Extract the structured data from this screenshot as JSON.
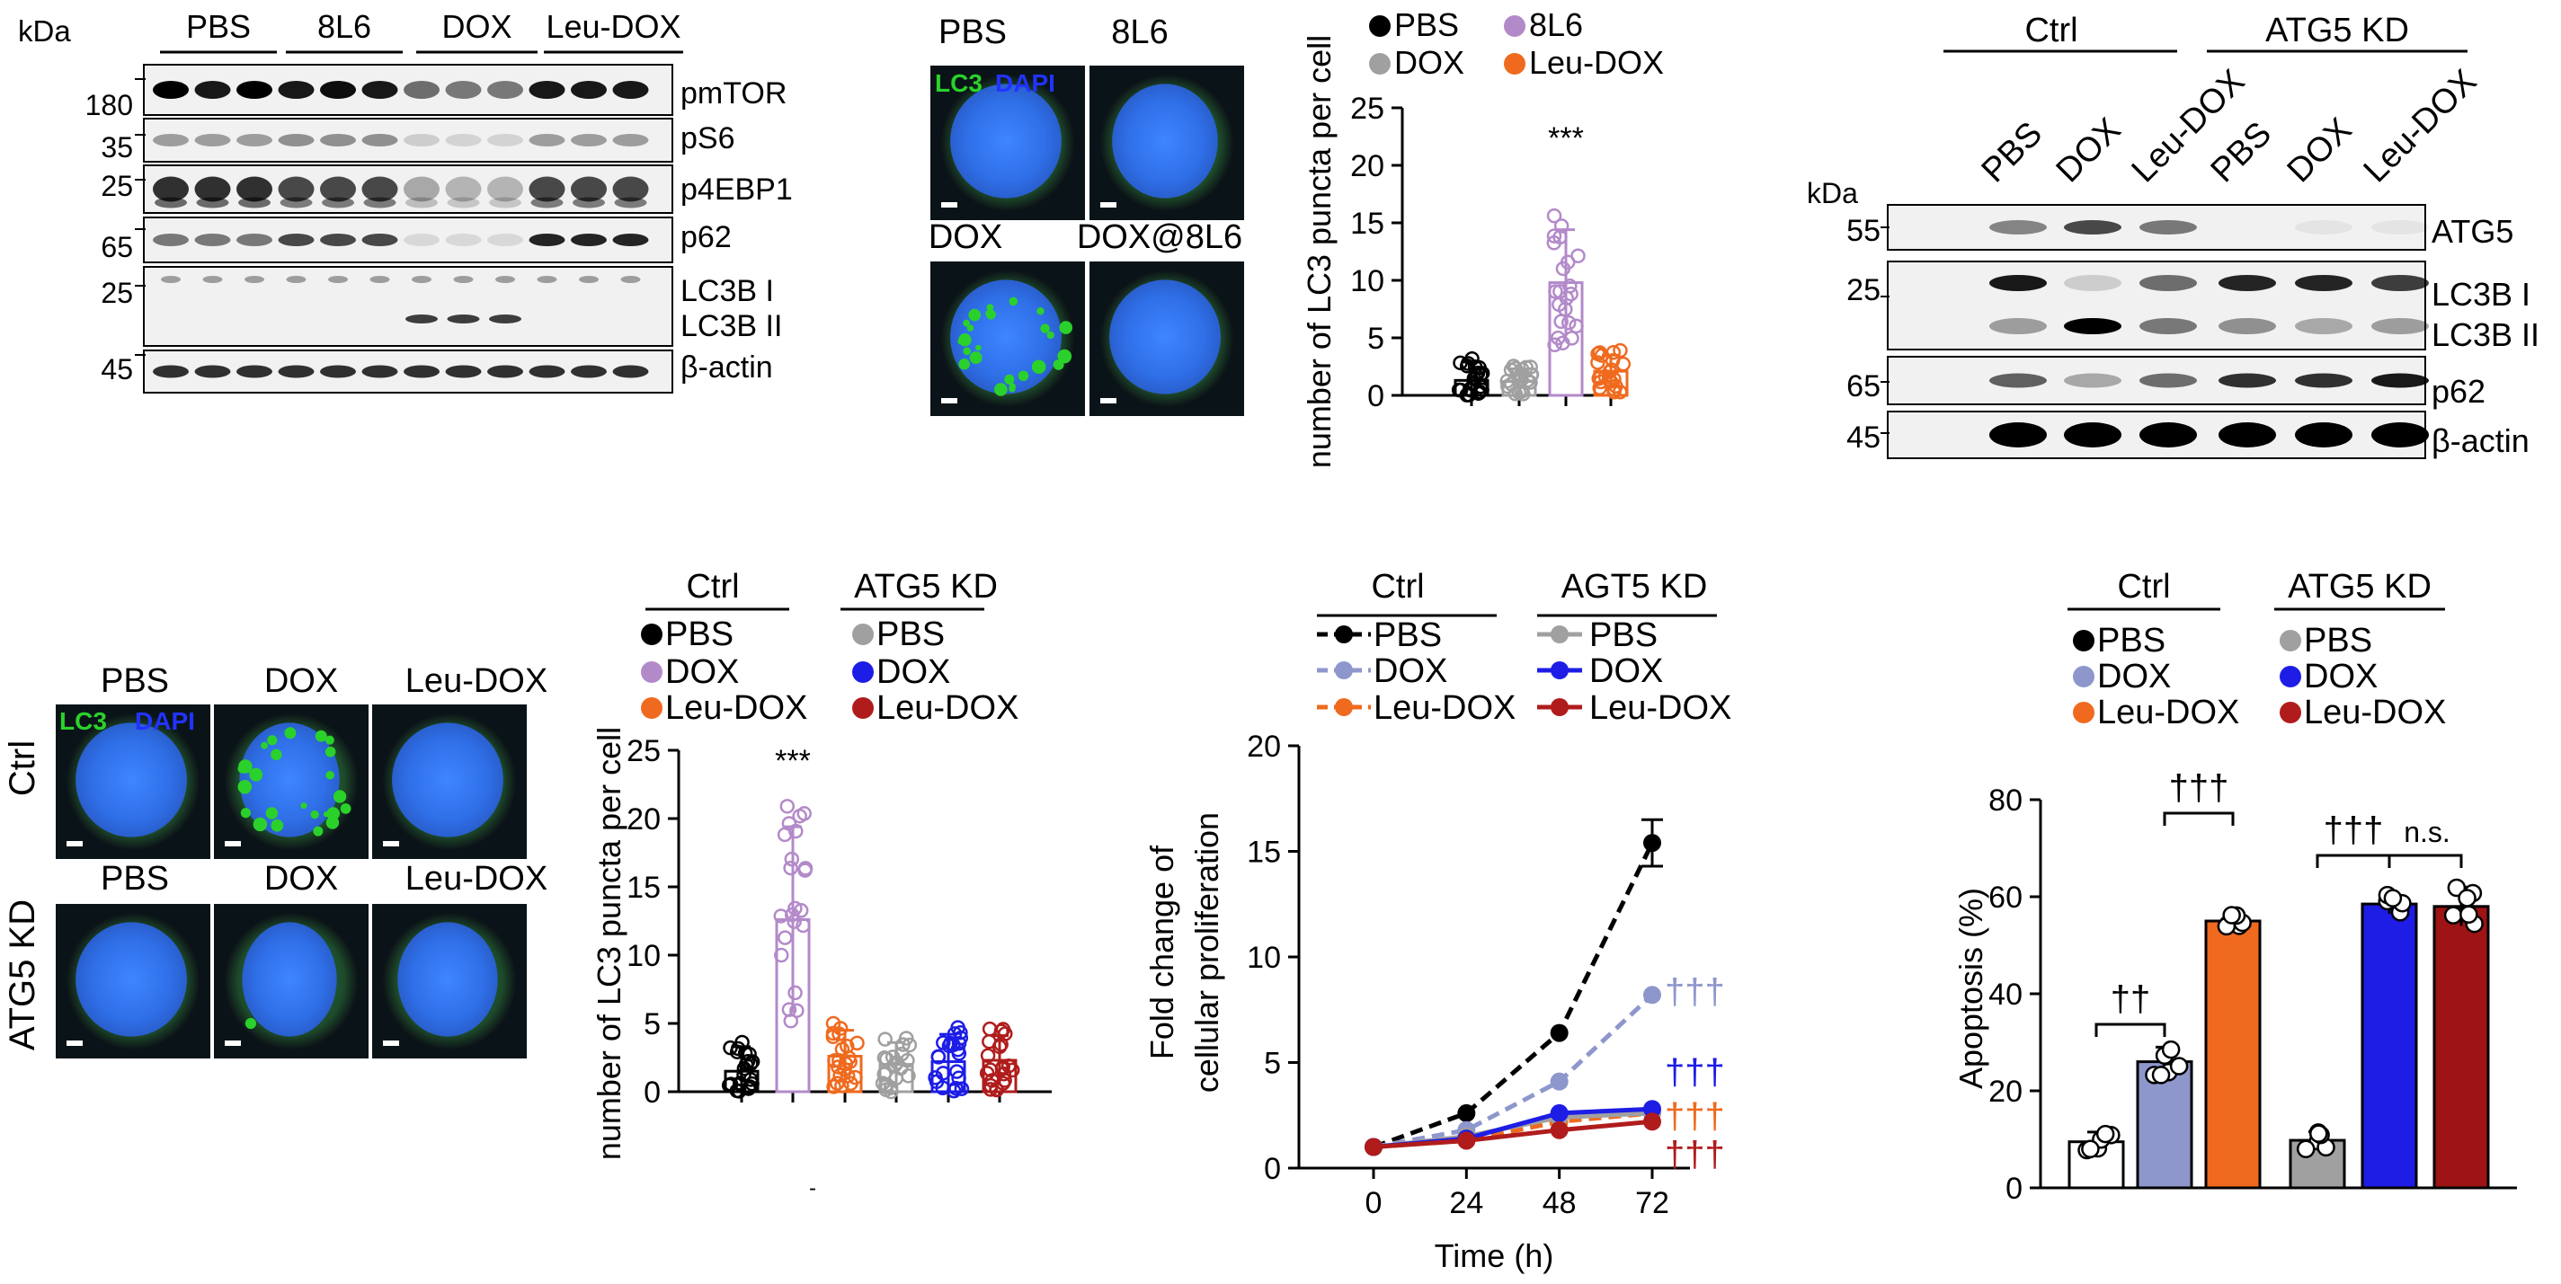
{
  "western_top": {
    "unit": "kDa",
    "groups": [
      "PBS",
      "8L6",
      "DOX",
      "Leu-DOX"
    ],
    "bands": [
      {
        "marker": "180",
        "name": "pmTOR"
      },
      {
        "marker": "35",
        "name": "pS6"
      },
      {
        "marker": "25",
        "name": "p4EBP1"
      },
      {
        "marker": "65",
        "name": "p62"
      },
      {
        "marker": "25",
        "name": "LC3B I"
      },
      {
        "marker": "",
        "name": "LC3B II"
      },
      {
        "marker": "45",
        "name": "β-actin"
      }
    ]
  },
  "micro_top": {
    "stain_lc3": "LC3",
    "stain_dapi": "DAPI",
    "labels": [
      "PBS",
      "8L6",
      "DOX",
      "DOX@8L6"
    ]
  },
  "chart_data": [
    {
      "type": "scatter",
      "ylabel": "number of LC3 puncta per cell",
      "ylim": [
        0,
        25
      ],
      "yticks": [
        "0",
        "5",
        "10",
        "15",
        "20",
        "25"
      ],
      "legend": [
        "PBS",
        "8L6",
        "DOX",
        "Leu-DOX"
      ],
      "categories": [
        "PBS",
        "DOX",
        "8L6",
        "Leu-DOX"
      ],
      "series": [
        {
          "name": "PBS",
          "mean": 1.3,
          "sd": 1.6,
          "color": "#000000"
        },
        {
          "name": "DOX",
          "mean": 1.2,
          "sd": 1.1,
          "color": "#a0a0a0"
        },
        {
          "name": "8L6",
          "mean": 9.8,
          "sd": 4.6,
          "color": "#b38ac9"
        },
        {
          "name": "Leu-DOX",
          "mean": 2.1,
          "sd": 1.4,
          "color": "#ef6a1e"
        }
      ],
      "annotation": "***"
    },
    {
      "type": "scatter",
      "ylabel": "number of LC3 puncta per cell",
      "ylim": [
        0,
        25
      ],
      "yticks": [
        "0",
        "5",
        "10",
        "15",
        "20",
        "25"
      ],
      "group_labels": [
        "Ctrl",
        "ATG5 KD"
      ],
      "legend_ctrl": [
        "PBS",
        "DOX",
        "Leu-DOX"
      ],
      "legend_kd": [
        "PBS",
        "DOX",
        "Leu-DOX"
      ],
      "series": [
        {
          "name": "PBS",
          "group": "Ctrl",
          "mean": 1.5,
          "sd": 1.8,
          "color": "#000000"
        },
        {
          "name": "DOX",
          "group": "Ctrl",
          "mean": 12.6,
          "sd": 6.8,
          "color": "#b38ac9"
        },
        {
          "name": "Leu-DOX",
          "group": "Ctrl",
          "mean": 2.6,
          "sd": 1.9,
          "color": "#ef6a1e"
        },
        {
          "name": "PBS",
          "group": "ATG5 KD",
          "mean": 2.0,
          "sd": 1.6,
          "color": "#a0a0a0"
        },
        {
          "name": "DOX",
          "group": "ATG5 KD",
          "mean": 2.2,
          "sd": 2.0,
          "color": "#1d1de6"
        },
        {
          "name": "Leu-DOX",
          "group": "ATG5 KD",
          "mean": 2.3,
          "sd": 1.8,
          "color": "#b01c1c"
        }
      ],
      "annotation": "***"
    },
    {
      "type": "line",
      "xlabel": "Time (h)",
      "ylabel": "Fold change of cellular proliferation",
      "x": [
        0,
        24,
        48,
        72
      ],
      "xticks": [
        "0",
        "24",
        "48",
        "72"
      ],
      "ylim": [
        0,
        20
      ],
      "yticks": [
        "0",
        "5",
        "10",
        "15",
        "20"
      ],
      "group_labels": [
        "Ctrl",
        "AGT5 KD"
      ],
      "series": [
        {
          "name": "PBS",
          "group": "Ctrl",
          "values": [
            1.0,
            2.6,
            6.4,
            15.4
          ],
          "err_last": 1.1,
          "color": "#000000",
          "dashed": true
        },
        {
          "name": "DOX",
          "group": "Ctrl",
          "values": [
            1.0,
            1.8,
            4.1,
            8.2
          ],
          "color": "#8e97cc",
          "dashed": true
        },
        {
          "name": "Leu-DOX",
          "group": "Ctrl",
          "values": [
            1.0,
            1.3,
            2.2,
            2.6
          ],
          "color": "#ef6a1e",
          "dashed": true
        },
        {
          "name": "PBS",
          "group": "AGT5 KD",
          "values": [
            1.0,
            1.5,
            2.4,
            2.6
          ],
          "color": "#a0a0a0",
          "dashed": false
        },
        {
          "name": "DOX",
          "group": "AGT5 KD",
          "values": [
            1.0,
            1.4,
            2.6,
            2.8
          ],
          "color": "#1d1de6",
          "dashed": false
        },
        {
          "name": "Leu-DOX",
          "group": "AGT5 KD",
          "values": [
            1.0,
            1.3,
            1.8,
            2.2
          ],
          "color": "#b01c1c",
          "dashed": false
        }
      ],
      "annotations": [
        {
          "text": "†††",
          "color": "#8e97cc",
          "y": 8.3
        },
        {
          "text": "†††",
          "color": "#1d1de6",
          "y": 4.5
        },
        {
          "text": "†††",
          "color": "#ef6a1e",
          "y": 2.4
        },
        {
          "text": "†††",
          "color": "#b01c1c",
          "y": 0.6
        }
      ]
    },
    {
      "type": "bar",
      "ylabel": "Apoptosis (%)",
      "ylim": [
        0,
        80
      ],
      "yticks": [
        "0",
        "20",
        "40",
        "60",
        "80"
      ],
      "group_labels": [
        "Ctrl",
        "ATG5 KD"
      ],
      "legend_ctrl": [
        "PBS",
        "DOX",
        "Leu-DOX"
      ],
      "legend_kd": [
        "PBS",
        "DOX",
        "Leu-DOX"
      ],
      "series": [
        {
          "name": "PBS",
          "group": "Ctrl",
          "value": 9.5,
          "err": 2.0,
          "color": "#ffffff",
          "dot": "#000000"
        },
        {
          "name": "DOX",
          "group": "Ctrl",
          "value": 26.0,
          "err": 3.0,
          "color": "#8e97cc",
          "dot": "#8e97cc"
        },
        {
          "name": "Leu-DOX",
          "group": "Ctrl",
          "value": 55.0,
          "err": 1.3,
          "color": "#ef6a1e",
          "dot": "#ef6a1e"
        },
        {
          "name": "PBS",
          "group": "ATG5 KD",
          "value": 9.8,
          "err": 1.8,
          "color": "#a0a0a0",
          "dot": "#a0a0a0"
        },
        {
          "name": "DOX",
          "group": "ATG5 KD",
          "value": 58.5,
          "err": 2.0,
          "color": "#1d1de6",
          "dot": "#1d1de6"
        },
        {
          "name": "Leu-DOX",
          "group": "ATG5 KD",
          "value": 58.0,
          "err": 4.0,
          "color": "#9e1414",
          "dot": "#b01c1c"
        }
      ],
      "annotations": [
        "††",
        "†††",
        "†††",
        "n.s."
      ]
    }
  ],
  "western_right": {
    "unit": "kDa",
    "groups": [
      "Ctrl",
      "ATG5 KD"
    ],
    "lanes": [
      "PBS",
      "DOX",
      "Leu-DOX",
      "PBS",
      "DOX",
      "Leu-DOX"
    ],
    "bands": [
      {
        "marker": "55",
        "name": "ATG5"
      },
      {
        "marker": "25",
        "name": "LC3B I"
      },
      {
        "marker": "",
        "name": "LC3B II"
      },
      {
        "marker": "65",
        "name": "p62"
      },
      {
        "marker": "45",
        "name": "β-actin"
      }
    ]
  },
  "micro_bottom": {
    "stain_lc3": "LC3",
    "stain_dapi": "DAPI",
    "rows": [
      "Ctrl",
      "ATG5 KD"
    ],
    "cols": [
      "PBS",
      "DOX",
      "Leu-DOX"
    ]
  },
  "colors": {
    "lc3_green": "#2bd12b",
    "dapi_blue": "#2c6df0"
  },
  "small_mark": "-"
}
